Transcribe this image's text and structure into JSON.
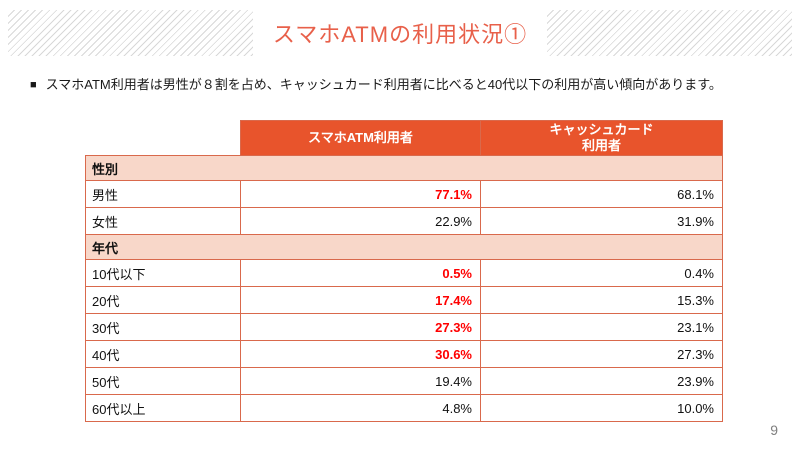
{
  "header": {
    "title": "スマホATMの利用状況①"
  },
  "summary": {
    "bullet": "■",
    "text": "スマホATM利用者は男性が８割を占め、キャッシュカード利用者に比べると40代以下の利用が高い傾向があります。"
  },
  "table": {
    "columns": {
      "label": "",
      "atm": "スマホATM利用者",
      "card": "キャッシュカード\n利用者"
    },
    "sections": [
      {
        "label": "性別",
        "rows": [
          {
            "label": "男性",
            "atm": "77.1%",
            "atm_highlight": true,
            "card": "68.1%"
          },
          {
            "label": "女性",
            "atm": "22.9%",
            "atm_highlight": false,
            "card": "31.9%"
          }
        ]
      },
      {
        "label": "年代",
        "rows": [
          {
            "label": "10代以下",
            "atm": "0.5%",
            "atm_highlight": true,
            "card": "0.4%"
          },
          {
            "label": "20代",
            "atm": "17.4%",
            "atm_highlight": true,
            "card": "15.3%"
          },
          {
            "label": "30代",
            "atm": "27.3%",
            "atm_highlight": true,
            "card": "23.1%"
          },
          {
            "label": "40代",
            "atm": "30.6%",
            "atm_highlight": true,
            "card": "27.3%"
          },
          {
            "label": "50代",
            "atm": "19.4%",
            "atm_highlight": false,
            "card": "23.9%"
          },
          {
            "label": "60代以上",
            "atm": "4.8%",
            "atm_highlight": false,
            "card": "10.0%"
          }
        ]
      }
    ]
  },
  "footer": {
    "page_number": "9"
  },
  "colors": {
    "title_orange": "#e8604a",
    "header_orange": "#e8542c",
    "section_peach": "#f8d7c9",
    "border_orange": "#d9694c",
    "highlight_red": "#ff0000",
    "stripe_gray": "#d8d8d8"
  }
}
